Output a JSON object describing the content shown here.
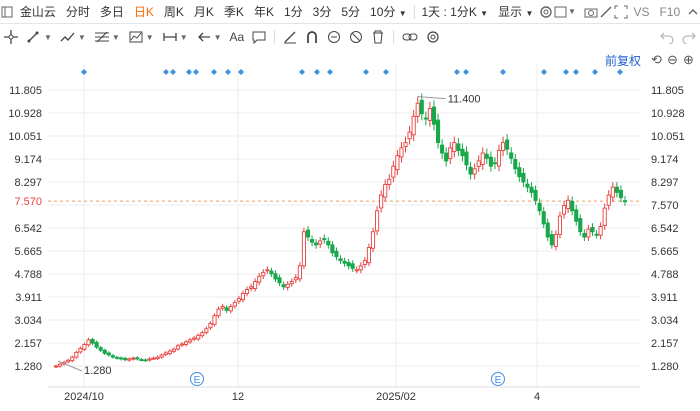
{
  "topbar": {
    "symbol": "金山云",
    "periods": [
      "分时",
      "多日",
      "日K",
      "周K",
      "月K",
      "季K",
      "年K",
      "1分",
      "3分",
      "5分"
    ],
    "active_period": "日K",
    "minute_select": "10分",
    "range_select": "1天 : 1分K",
    "display_select": "显示",
    "vs_label": "VS",
    "f10_label": "F10"
  },
  "toolbar": {
    "icons": [
      "crosshair-icon",
      "line-draw-icon",
      "trend-icon",
      "fib-icon",
      "measure-icon",
      "arrow-icon",
      "text-icon",
      "note-icon",
      "pencil-icon",
      "magnet-icon",
      "lock-icon",
      "hide-icon",
      "trash-icon",
      "link-icon",
      "settings-icon"
    ]
  },
  "adjust_label": "前复权",
  "price_axis": [
    "11.805",
    "10.928",
    "10.051",
    "9.174",
    "8.297",
    "7.570",
    "6.542",
    "5.665",
    "4.788",
    "3.911",
    "3.034",
    "2.157",
    "1.280"
  ],
  "current_price": "7.570",
  "date_axis": [
    "2024/10",
    "12",
    "2025/02",
    "4"
  ],
  "annotations": {
    "high": "11.400",
    "low": "1.280"
  },
  "event_marker": "E",
  "colors": {
    "up": "#e8413d",
    "down": "#17a84b",
    "accent": "#ff6a00",
    "grid": "#eeeeee",
    "dot": "#3d8fe0",
    "dashed": "#f0a060"
  },
  "chart_data": {
    "type": "candlestick",
    "x": [
      "2024/10",
      "12",
      "2025/02",
      "4"
    ],
    "y_ticks": [
      11.805,
      10.928,
      10.051,
      9.174,
      8.297,
      7.57,
      6.542,
      5.665,
      4.788,
      3.911,
      3.034,
      2.157,
      1.28
    ],
    "ylim": [
      0.9,
      12.4
    ],
    "last_price": 7.57,
    "max_marked": 11.4,
    "min_marked": 1.28,
    "close_path": [
      1.28,
      1.35,
      1.42,
      1.5,
      1.62,
      1.8,
      1.95,
      2.1,
      2.28,
      2.15,
      2.0,
      1.88,
      1.76,
      1.7,
      1.62,
      1.58,
      1.55,
      1.52,
      1.55,
      1.58,
      1.55,
      1.52,
      1.5,
      1.55,
      1.58,
      1.62,
      1.7,
      1.78,
      1.85,
      1.92,
      2.05,
      2.12,
      2.2,
      2.28,
      2.35,
      2.45,
      2.55,
      2.7,
      2.9,
      3.2,
      3.45,
      3.55,
      3.4,
      3.55,
      3.7,
      3.85,
      4.05,
      4.2,
      4.3,
      4.5,
      4.7,
      4.85,
      4.95,
      4.8,
      4.6,
      4.45,
      4.3,
      4.4,
      4.5,
      4.65,
      5.1,
      6.4,
      6.2,
      6.0,
      5.9,
      6.05,
      6.1,
      5.9,
      5.6,
      5.45,
      5.3,
      5.2,
      5.1,
      5.0,
      4.95,
      5.1,
      5.3,
      5.8,
      6.4,
      7.2,
      7.8,
      8.2,
      8.4,
      8.9,
      9.3,
      9.6,
      9.8,
      10.2,
      10.8,
      11.3,
      10.9,
      10.7,
      11.1,
      10.5,
      9.8,
      9.4,
      9.1,
      9.6,
      9.8,
      9.5,
      9.3,
      8.95,
      8.6,
      8.8,
      9.1,
      9.4,
      9.2,
      8.9,
      9.0,
      9.5,
      9.8,
      9.55,
      9.2,
      8.8,
      8.5,
      8.3,
      8.1,
      7.9,
      7.6,
      7.2,
      6.7,
      6.2,
      5.9,
      6.3,
      7.0,
      7.4,
      7.6,
      7.2,
      6.8,
      6.4,
      6.2,
      6.5,
      6.4,
      6.3,
      6.6,
      7.3,
      7.8,
      8.1,
      7.9,
      7.7,
      7.57
    ]
  }
}
